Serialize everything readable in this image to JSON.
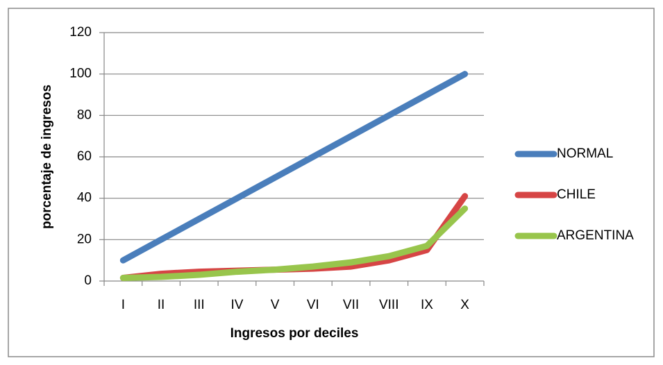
{
  "chart_data": {
    "type": "line",
    "x_label": "Ingresos por deciles",
    "y_label": "porcentaje de ingresos",
    "categories": [
      "I",
      "II",
      "III",
      "IV",
      "V",
      "VI",
      "VII",
      "VIII",
      "IX",
      "X"
    ],
    "series": [
      {
        "name": "NORMAL",
        "color": "#4a7ebb",
        "values": [
          10,
          20,
          30,
          40,
          50,
          60,
          70,
          80,
          90,
          100
        ]
      },
      {
        "name": "CHILE",
        "color": "#d64545",
        "values": [
          1.5,
          3.5,
          4.5,
          5,
          5.5,
          6,
          7,
          10,
          15,
          41
        ]
      },
      {
        "name": "ARGENTINA",
        "color": "#98c54c",
        "values": [
          1.5,
          2,
          3,
          4.5,
          5.5,
          7,
          9,
          12,
          17,
          35
        ]
      }
    ],
    "ylim": [
      0,
      120
    ],
    "yticks": [
      0,
      20,
      40,
      60,
      80,
      100,
      120
    ],
    "grid": true,
    "legend": "right"
  }
}
